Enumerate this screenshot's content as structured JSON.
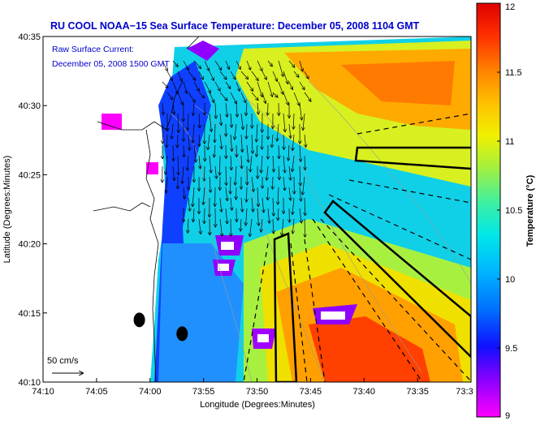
{
  "chart_data": {
    "type": "heatmap",
    "title": "RU COOL  NOAA−15  Sea Surface Temperature:  December 05, 2008 1104 GMT",
    "xlabel": "Longitude (Degrees:Minutes)",
    "ylabel": "Latitude (Degrees:Minutes)",
    "legend_title": "Raw Surface Current:",
    "legend_time": "December 05, 2008 1500 GMT",
    "scale_label": "50 cm/s",
    "colorbar": {
      "label": "Temperature (°C)",
      "range": [
        9,
        12
      ],
      "ticks": [
        "12",
        "11.5",
        "11",
        "10.5",
        "10",
        "9.5",
        "9"
      ]
    },
    "x_ticks": [
      "74:10",
      "74:05",
      "74:00",
      "73:55",
      "73:50",
      "73:45",
      "73:40",
      "73:35",
      "73:3"
    ],
    "y_ticks": [
      "40:35",
      "40:30",
      "40:25",
      "40:20",
      "40:15",
      "40:10"
    ],
    "xlim": [
      "74:10",
      "73:30"
    ],
    "ylim": [
      "40:10",
      "40:35"
    ],
    "stations": [
      {
        "lon": "74:01",
        "lat": "40:14.5"
      },
      {
        "lon": "73:57",
        "lat": "40:13.5"
      }
    ]
  },
  "colors": {
    "title": "#0000cc",
    "land": "#ffffff",
    "frame": "#000000"
  }
}
